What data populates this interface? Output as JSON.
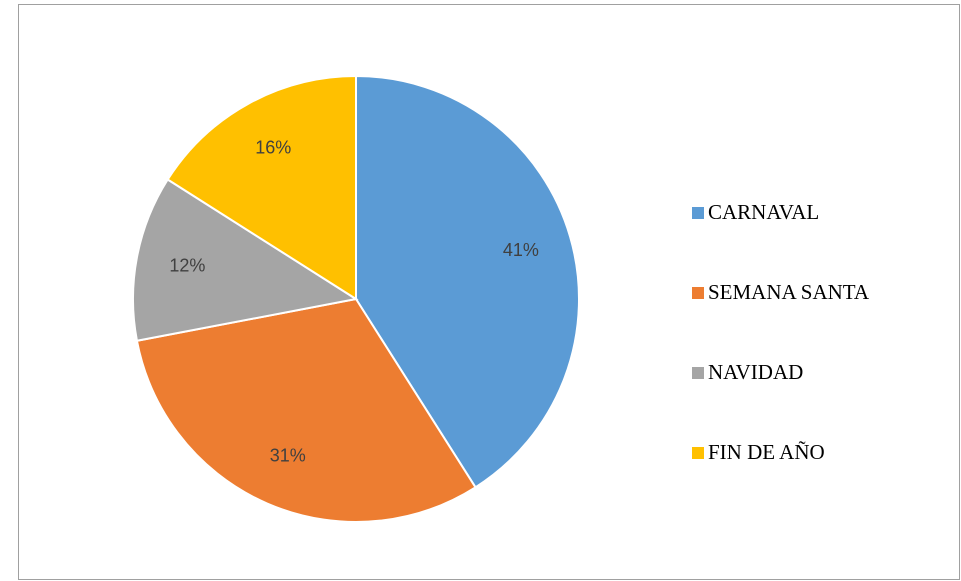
{
  "chart_data": {
    "type": "pie",
    "categories": [
      "CARNAVAL",
      "SEMANA SANTA",
      "NAVIDAD",
      "FIN DE AÑO"
    ],
    "values": [
      41,
      31,
      12,
      16
    ],
    "value_labels": [
      "41%",
      "31%",
      "12%",
      "16%"
    ],
    "colors": [
      "#5b9bd5",
      "#ed7d31",
      "#a5a5a5",
      "#ffc000"
    ],
    "legend": "right"
  }
}
